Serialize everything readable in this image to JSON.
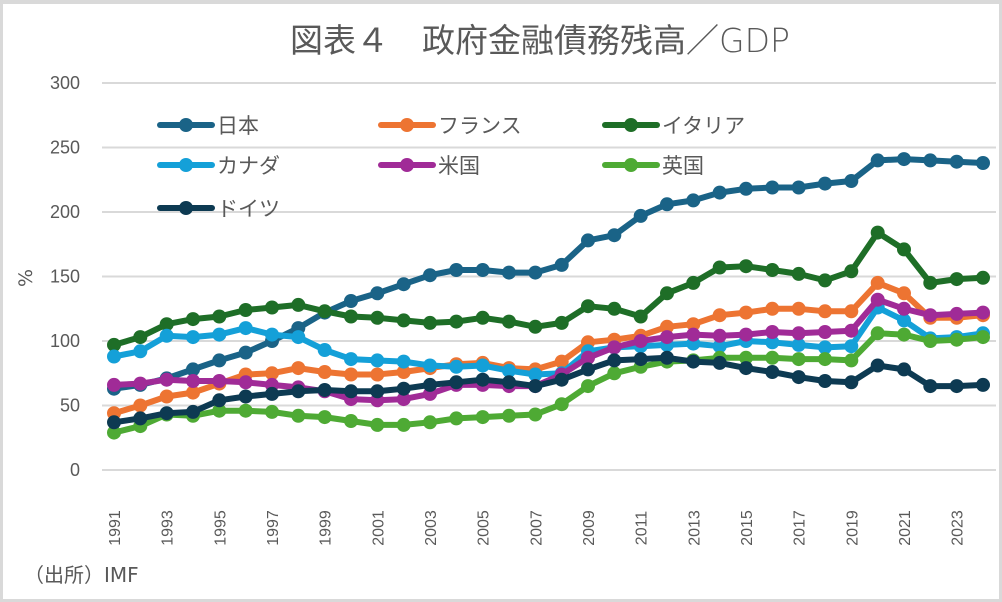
{
  "chart_data": {
    "type": "line",
    "title": "図表４　政府金融債務残高／GDP",
    "xlabel": "",
    "ylabel": "%",
    "ylim": [
      0,
      300
    ],
    "yticks": [
      0,
      50,
      100,
      150,
      200,
      250,
      300
    ],
    "grid": true,
    "legend_position": "top-left-inside",
    "x": [
      1991,
      1992,
      1993,
      1994,
      1995,
      1996,
      1997,
      1998,
      1999,
      2000,
      2001,
      2002,
      2003,
      2004,
      2005,
      2006,
      2007,
      2008,
      2009,
      2010,
      2011,
      2012,
      2013,
      2014,
      2015,
      2016,
      2017,
      2018,
      2019,
      2020,
      2021,
      2022,
      2023,
      2024
    ],
    "xtick_labels": [
      "1991",
      "1993",
      "1995",
      "1997",
      "1999",
      "2001",
      "2003",
      "2005",
      "2007",
      "2009",
      "2011",
      "2013",
      "2015",
      "2017",
      "2019",
      "2021",
      "2023"
    ],
    "series": [
      {
        "name": "日本",
        "color": "#1a6387",
        "values": [
          63,
          66,
          71,
          78,
          85,
          91,
          100,
          110,
          122,
          131,
          137,
          144,
          151,
          155,
          155,
          153,
          153,
          159,
          178,
          182,
          197,
          206,
          209,
          215,
          218,
          219,
          219,
          222,
          224,
          240,
          241,
          240,
          239,
          238
        ]
      },
      {
        "name": "フランス",
        "color": "#ed7432",
        "values": [
          44,
          50,
          57,
          60,
          67,
          74,
          75,
          79,
          76,
          74,
          74,
          76,
          79,
          82,
          83,
          79,
          78,
          84,
          99,
          101,
          104,
          111,
          113,
          120,
          122,
          125,
          125,
          123,
          123,
          145,
          137,
          118,
          118,
          120
        ]
      },
      {
        "name": "イタリア",
        "color": "#1e6e27",
        "values": [
          97,
          103,
          113,
          117,
          119,
          124,
          126,
          128,
          123,
          119,
          118,
          116,
          114,
          115,
          118,
          115,
          111,
          114,
          127,
          125,
          119,
          137,
          145,
          157,
          158,
          155,
          152,
          147,
          154,
          184,
          171,
          145,
          148,
          149
        ]
      },
      {
        "name": "カナダ",
        "color": "#14a0d8",
        "values": [
          88,
          92,
          104,
          103,
          105,
          110,
          105,
          103,
          93,
          86,
          85,
          84,
          81,
          80,
          81,
          77,
          74,
          75,
          92,
          95,
          96,
          97,
          98,
          96,
          100,
          99,
          97,
          95,
          96,
          126,
          116,
          102,
          103,
          106
        ]
      },
      {
        "name": "米国",
        "color": "#a02b97",
        "values": [
          66,
          67,
          70,
          69,
          69,
          68,
          66,
          64,
          61,
          55,
          54,
          55,
          59,
          66,
          66,
          65,
          65,
          74,
          87,
          95,
          100,
          103,
          105,
          104,
          105,
          107,
          106,
          107,
          108,
          132,
          125,
          120,
          121,
          122
        ]
      },
      {
        "name": "英国",
        "color": "#4eaa34",
        "values": [
          29,
          34,
          43,
          42,
          46,
          46,
          45,
          42,
          41,
          38,
          35,
          35,
          37,
          40,
          41,
          42,
          43,
          51,
          65,
          75,
          80,
          84,
          85,
          87,
          87,
          87,
          86,
          86,
          85,
          106,
          105,
          100,
          101,
          103
        ]
      },
      {
        "name": "ドイツ",
        "color": "#0d3a52",
        "values": [
          37,
          40,
          44,
          45,
          54,
          57,
          59,
          61,
          62,
          61,
          61,
          63,
          66,
          68,
          70,
          68,
          65,
          70,
          78,
          85,
          86,
          87,
          84,
          83,
          79,
          76,
          72,
          69,
          68,
          81,
          78,
          65,
          65,
          66
        ]
      }
    ],
    "source_note": "（出所）IMF"
  }
}
